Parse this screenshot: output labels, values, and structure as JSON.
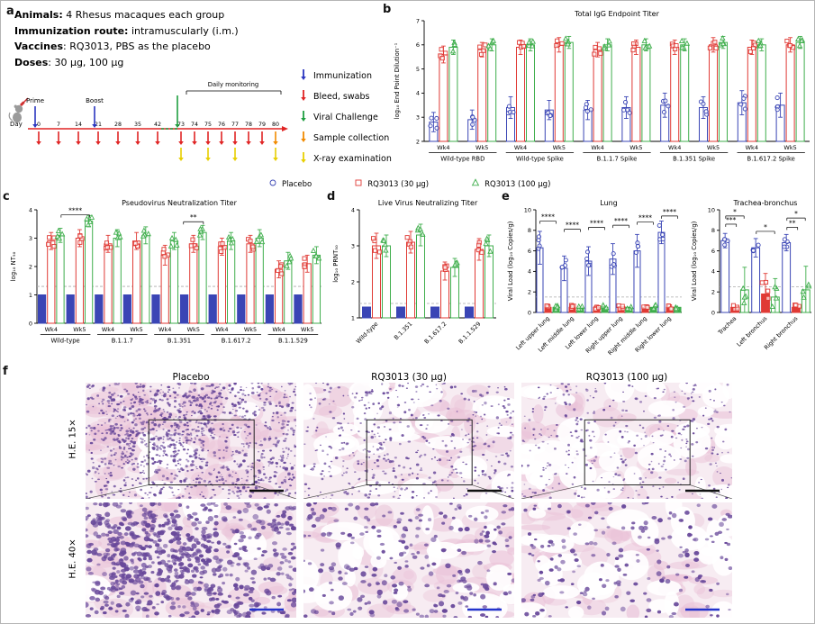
{
  "panel_labels": {
    "a": "a",
    "b": "b",
    "c": "c",
    "d": "d",
    "e": "e",
    "f": "f"
  },
  "panel_a": {
    "info_lines": [
      {
        "bold": "Animals:",
        "rest": " 4 Rhesus macaques each group"
      },
      {
        "bold": "Immunization route:",
        "rest": " intramuscularly (i.m.)"
      },
      {
        "bold": "Vaccines",
        "rest": ": RQ3013, PBS as the placebo"
      },
      {
        "bold": "Doses",
        "rest": ": 30 μg, 100 μg"
      }
    ],
    "timeline": {
      "day_label": "Day",
      "prime": "Prime",
      "boost": "Boost",
      "monitoring": "Daily monitoring",
      "days": [
        0,
        7,
        14,
        21,
        28,
        35,
        42,
        73,
        74,
        75,
        76,
        77,
        78,
        79,
        80
      ],
      "immunization_days": [
        0,
        21
      ],
      "challenge_days": [
        73
      ],
      "bleed_days": [
        0,
        7,
        14,
        21,
        28,
        35,
        42,
        73,
        74,
        75,
        76,
        77,
        78,
        79
      ],
      "collection_days": [
        80
      ],
      "xray_days": [
        73,
        75,
        77,
        80
      ],
      "line_color": "#e02424"
    },
    "arrow_legend": [
      {
        "label": "Immunization",
        "color": "#2a35c0"
      },
      {
        "label": "Bleed, swabs",
        "color": "#e02424"
      },
      {
        "label": "Viral Challenge",
        "color": "#1f9e40"
      },
      {
        "label": "Sample collection",
        "color": "#f18a00"
      },
      {
        "label": "X-ray examination",
        "color": "#e8cf00"
      }
    ]
  },
  "series_legend": [
    {
      "label": "Placebo",
      "color": "#3a45b5",
      "marker": "circle"
    },
    {
      "label": "RQ3013 (30 μg)",
      "color": "#e03a35",
      "marker": "square"
    },
    {
      "label": "RQ3013 (100 μg)",
      "color": "#3fae4c",
      "marker": "triangle"
    }
  ],
  "chart_data": [
    {
      "id": "b",
      "type": "bar",
      "title": "Total IgG Endpoint Titer",
      "ylabel": "log₁₀ End Point Dilution⁻¹",
      "ylim": [
        2,
        7
      ],
      "yticks": [
        2,
        3,
        4,
        5,
        6,
        7
      ],
      "categories": [
        "Wk4",
        "Wk5",
        "Wk4",
        "Wk5",
        "Wk4",
        "Wk5",
        "Wk4",
        "Wk5",
        "Wk4",
        "Wk5"
      ],
      "groups": [
        {
          "label": "Wild-type RBD",
          "from": 0,
          "to": 1
        },
        {
          "label": "Wild-type Spike",
          "from": 2,
          "to": 3
        },
        {
          "label": "B.1.1.7 Spike",
          "from": 4,
          "to": 5
        },
        {
          "label": "B.1.351 Spike",
          "from": 6,
          "to": 7
        },
        {
          "label": "B.1.617.2 Spike",
          "from": 8,
          "to": 9
        }
      ],
      "series": [
        {
          "name": "Placebo",
          "values": [
            2.8,
            2.9,
            3.4,
            3.3,
            3.3,
            3.4,
            3.5,
            3.4,
            3.6,
            3.5
          ],
          "errors": [
            0.4,
            0.4,
            0.45,
            0.4,
            0.4,
            0.45,
            0.5,
            0.45,
            0.5,
            0.5
          ]
        },
        {
          "name": "RQ3013 (30 μg)",
          "values": [
            5.6,
            5.8,
            5.9,
            6.0,
            5.8,
            5.9,
            5.9,
            6.0,
            5.9,
            6.0
          ],
          "errors": [
            0.35,
            0.3,
            0.3,
            0.3,
            0.3,
            0.3,
            0.3,
            0.3,
            0.3,
            0.3
          ]
        },
        {
          "name": "RQ3013 (100 μg)",
          "values": [
            5.9,
            6.0,
            6.0,
            6.1,
            6.0,
            6.0,
            6.0,
            6.1,
            6.0,
            6.1
          ],
          "errors": [
            0.3,
            0.25,
            0.25,
            0.25,
            0.25,
            0.25,
            0.25,
            0.25,
            0.25,
            0.25
          ]
        }
      ]
    },
    {
      "id": "c",
      "type": "bar",
      "title": "Pseudovirus Neutralization Titer",
      "ylabel": "log₁₀ NT₅₀",
      "ylim": [
        0,
        4
      ],
      "yticks": [
        0,
        1,
        2,
        3,
        4
      ],
      "refline": 1.3,
      "categories": [
        "Wk4",
        "Wk5",
        "Wk4",
        "Wk5",
        "Wk4",
        "Wk5",
        "Wk4",
        "Wk5",
        "Wk4",
        "Wk5"
      ],
      "groups": [
        {
          "label": "Wild-type",
          "from": 0,
          "to": 1
        },
        {
          "label": "B.1.1.7",
          "from": 2,
          "to": 3
        },
        {
          "label": "B.1.351",
          "from": 4,
          "to": 5
        },
        {
          "label": "B.1.617.2",
          "from": 6,
          "to": 7
        },
        {
          "label": "B.1.1.529",
          "from": 8,
          "to": 9
        }
      ],
      "series": [
        {
          "name": "Placebo",
          "values": [
            1,
            1,
            1,
            1,
            1,
            1,
            1,
            1,
            1,
            1
          ],
          "errors": [
            0,
            0,
            0,
            0,
            0,
            0,
            0,
            0,
            0,
            0
          ],
          "filled": true,
          "points": false
        },
        {
          "name": "RQ3013 (30 μg)",
          "values": [
            2.9,
            3.0,
            2.8,
            2.9,
            2.4,
            2.8,
            2.7,
            2.8,
            1.9,
            2.1
          ],
          "errors": [
            0.3,
            0.3,
            0.3,
            0.3,
            0.35,
            0.3,
            0.3,
            0.3,
            0.3,
            0.3
          ]
        },
        {
          "name": "RQ3013 (100 μg)",
          "values": [
            3.1,
            3.6,
            3.0,
            3.1,
            2.9,
            3.2,
            2.9,
            3.0,
            2.2,
            2.4
          ],
          "errors": [
            0.25,
            0.2,
            0.3,
            0.3,
            0.3,
            0.25,
            0.3,
            0.3,
            0.3,
            0.3
          ]
        }
      ],
      "annotations": [
        {
          "text": "****",
          "from": 0.35,
          "to": 1.35,
          "y": 3.82
        },
        {
          "text": "**",
          "from": 4.65,
          "to": 5.35,
          "y": 3.58
        }
      ]
    },
    {
      "id": "d",
      "type": "bar",
      "title": "Live Virus Neutralizing Titer",
      "ylabel": "log₁₀ PRNT₅₀",
      "ylim": [
        1,
        4
      ],
      "yticks": [
        1,
        2,
        3,
        4
      ],
      "refline": 1.4,
      "rotate_ticks": true,
      "categories": [
        "Wild-type",
        "B.1.351",
        "B.1.617.2",
        "B.1.1.529"
      ],
      "series": [
        {
          "name": "Placebo",
          "values": [
            1.3,
            1.3,
            1.3,
            1.3
          ],
          "errors": [
            0,
            0,
            0,
            0
          ],
          "filled": true,
          "points": false
        },
        {
          "name": "RQ3013 (30 μg)",
          "values": [
            3.0,
            3.1,
            2.3,
            2.9
          ],
          "errors": [
            0.35,
            0.3,
            0.25,
            0.3
          ]
        },
        {
          "name": "RQ3013 (100 μg)",
          "values": [
            3.0,
            3.3,
            2.4,
            3.0
          ],
          "errors": [
            0.3,
            0.3,
            0.25,
            0.3
          ]
        }
      ]
    },
    {
      "id": "e1",
      "type": "bar",
      "title": "Lung",
      "ylabel": "Viral Load (log₁₀ Copies/g)",
      "ylim": [
        0,
        10
      ],
      "yticks": [
        0,
        2,
        4,
        6,
        8,
        10
      ],
      "refline": 1.5,
      "rotate_ticks": true,
      "categories": [
        "Left upper lung",
        "Left middle lung",
        "Left lower lung",
        "Right upper lung",
        "Right middle lung",
        "Right lower lung"
      ],
      "series": [
        {
          "name": "Placebo",
          "values": [
            6.3,
            4.3,
            5.0,
            5.2,
            6.0,
            7.8
          ],
          "errors": [
            1.6,
            1.2,
            1.4,
            1.5,
            1.6,
            1.1
          ]
        },
        {
          "name": "RQ3013 (30 μg)",
          "values": [
            0.5,
            0.5,
            0.5,
            0.5,
            0.5,
            0.5
          ],
          "errors": [
            0,
            0,
            0,
            0,
            0,
            0
          ],
          "filled": true
        },
        {
          "name": "RQ3013 (100 μg)",
          "values": [
            0.5,
            0.5,
            0.5,
            0.5,
            0.5,
            0.5
          ],
          "errors": [
            0,
            0,
            0,
            0,
            0,
            0
          ],
          "filled": true
        }
      ],
      "annotations": [
        {
          "text": "****",
          "from": -0.33,
          "to": 0.33,
          "y": 8.9
        },
        {
          "text": "****",
          "from": 0.67,
          "to": 1.33,
          "y": 8.1
        },
        {
          "text": "****",
          "from": 1.67,
          "to": 2.33,
          "y": 8.3
        },
        {
          "text": "****",
          "from": 2.67,
          "to": 3.33,
          "y": 8.5
        },
        {
          "text": "****",
          "from": 3.67,
          "to": 4.33,
          "y": 8.8
        },
        {
          "text": "****",
          "from": 4.67,
          "to": 5.33,
          "y": 9.4
        }
      ]
    },
    {
      "id": "e2",
      "type": "bar",
      "title": "Trachea-bronchus",
      "ylabel": "Viral Load (log₁₀ Copies/g)",
      "ylim": [
        0,
        10
      ],
      "yticks": [
        0,
        2,
        4,
        6,
        8,
        10
      ],
      "refline": 2.5,
      "rotate_ticks": true,
      "categories": [
        "Trachea",
        "Left bronchus",
        "Right bronchus"
      ],
      "series": [
        {
          "name": "Placebo",
          "values": [
            7.0,
            6.3,
            6.8
          ],
          "errors": [
            0.7,
            0.9,
            0.8
          ]
        },
        {
          "name": "RQ3013 (30 μg)",
          "values": [
            0.5,
            1.8,
            0.5
          ],
          "errors": [
            0,
            2.0,
            0
          ],
          "filled": true
        },
        {
          "name": "RQ3013 (100 μg)",
          "values": [
            2.2,
            1.5,
            2.2
          ],
          "errors": [
            2.2,
            1.8,
            2.3
          ]
        }
      ],
      "annotations": [
        {
          "text": "*",
          "from": -0.3,
          "to": 0.3,
          "y": 9.4
        },
        {
          "text": "***",
          "from": -0.3,
          "to": 0.05,
          "y": 8.6
        },
        {
          "text": "*",
          "from": 0.7,
          "to": 1.3,
          "y": 7.9
        },
        {
          "text": "*",
          "from": 1.7,
          "to": 2.3,
          "y": 9.2
        },
        {
          "text": "**",
          "from": 1.7,
          "to": 2.05,
          "y": 8.3
        }
      ]
    }
  ],
  "panel_f": {
    "col_titles": [
      "Placebo",
      "RQ3013 (30 μg)",
      "RQ3013 (100 μg)"
    ],
    "row_titles": [
      "H.E. 15×",
      "H.E. 40×"
    ],
    "histology": {
      "bg": "#f7ecf2",
      "cytoplasm": "#eac3d8",
      "nucleus": "#68489a",
      "scalebar_top": "#111111",
      "scalebar_bottom": "#2433cc",
      "images": [
        [
          {
            "dots": 950,
            "blobs": 2,
            "size": [
              0.8,
              1.9
            ],
            "cluster": true
          },
          {
            "dots": 470,
            "blobs": 11,
            "size": [
              0.8,
              1.8
            ]
          },
          {
            "dots": 360,
            "blobs": 13,
            "size": [
              0.8,
              1.7
            ]
          }
        ],
        [
          {
            "dots": 560,
            "blobs": 1,
            "size": [
              1.8,
              3.4
            ],
            "cluster": true
          },
          {
            "dots": 250,
            "blobs": 8,
            "size": [
              1.8,
              3.2
            ]
          },
          {
            "dots": 190,
            "blobs": 10,
            "size": [
              1.7,
              3.0
            ]
          }
        ]
      ]
    }
  }
}
